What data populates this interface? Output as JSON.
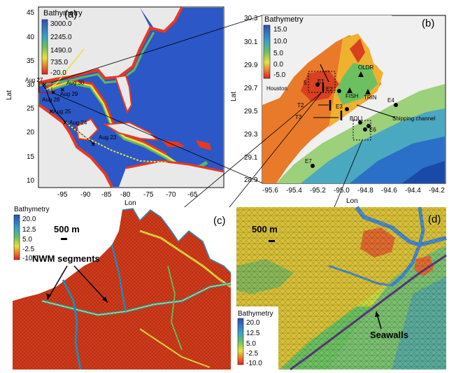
{
  "figure": {
    "panel_a": {
      "label": "(a)",
      "colorbar": {
        "title": "Bathymetry",
        "ticks": [
          "3000.0",
          "2245.0",
          "1490.0",
          "735.0",
          "-20.0"
        ]
      },
      "y_ticks": [
        "45",
        "40",
        "35",
        "30",
        "25",
        "20",
        "15",
        "10"
      ],
      "x_ticks": [
        "-95",
        "-90",
        "-85",
        "-80",
        "-75",
        "-70",
        "-65"
      ],
      "xlabel": "Lon",
      "ylabel": "Lat",
      "track_dates": [
        "Aug 27",
        "Aug 28",
        "Aug 29",
        "Aug 30",
        "Aug 25",
        "Aug 24",
        "Aug 23"
      ]
    },
    "panel_b": {
      "label": "(b)",
      "colorbar": {
        "title": "Bathymetry",
        "ticks": [
          "15.0",
          "10.0",
          "5.0",
          "0.0",
          "-5.0"
        ]
      },
      "y_ticks": [
        "30.3",
        "30.1",
        "29.9",
        "29.7",
        "29.5",
        "29.3",
        "29.1",
        "28.9"
      ],
      "x_ticks": [
        "-95.6",
        "-95.4",
        "-95.2",
        "-95.0",
        "-94.8",
        "-94.6",
        "-94.4",
        "-94.2"
      ],
      "xlabel": "Lon",
      "ylabel": "Lat",
      "stations": [
        "OLDR",
        "FISH",
        "TRIN",
        "E1",
        "E2",
        "E3",
        "E4",
        "BOLI",
        "E6",
        "E7"
      ],
      "labels": [
        "Houston",
        "T2",
        "T3",
        "Shipping channel",
        "5"
      ]
    },
    "panel_c": {
      "label": "(c)",
      "colorbar_left": {
        "title": "Bathymetry",
        "ticks": [
          "20.0",
          "12.5",
          "5.0",
          "-2.5",
          "-10.0"
        ]
      },
      "colorbar_right": {
        "title": "Bathymetry",
        "ticks": [
          "20.0",
          "12.5",
          "5.0",
          "-2.5",
          "-10.0"
        ]
      },
      "scale": "500 m",
      "annotation": "NWM segments"
    },
    "panel_d": {
      "label": "(d)",
      "scale": "500 m",
      "annotation": "Seawalls"
    },
    "colors": {
      "deep": "#2a58c8",
      "mid": "#5ab66a",
      "shallow": "#e8e040",
      "land_high": "#e83820",
      "land_top": "#c81e1e",
      "river": "#4a90c8"
    }
  }
}
